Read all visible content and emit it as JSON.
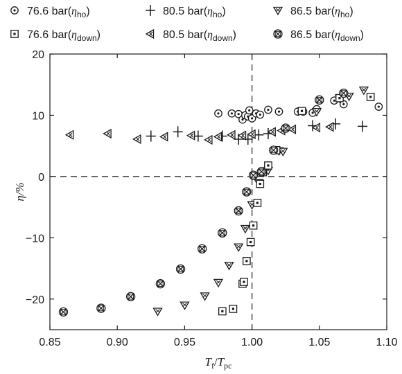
{
  "chart_data": {
    "type": "scatter",
    "xlim": [
      0.85,
      1.1
    ],
    "ylim": [
      -25,
      20
    ],
    "xticks": [
      0.85,
      0.9,
      0.95,
      1.0,
      1.05,
      1.1
    ],
    "xtick_labels": [
      "0.85",
      "0.90",
      "0.95",
      "1.00",
      "1.05",
      "1.10"
    ],
    "yticks": [
      -20,
      -10,
      0,
      10,
      20
    ],
    "ytick_labels": [
      "−20",
      "−10",
      "0",
      "10",
      "20"
    ],
    "xlabel": {
      "main_a": "T",
      "sub_a": "f",
      "sep": "/",
      "main_b": "T",
      "sub_b": "pc"
    },
    "ylabel": "η/%",
    "reference_lines": {
      "x": 1.0,
      "y": 0,
      "style": "dashed"
    },
    "grid": false,
    "legend_position": "top",
    "series": [
      {
        "legend": {
          "pre": "76.6 bar(",
          "sym": "η",
          "sub": "ho",
          "post": ")"
        },
        "marker": "circle-dot",
        "points": [
          [
            0.975,
            10.3
          ],
          [
            0.985,
            10.3
          ],
          [
            0.99,
            10.2
          ],
          [
            0.993,
            9.3
          ],
          [
            0.995,
            10.0
          ],
          [
            0.997,
            9.8
          ],
          [
            0.998,
            10.8
          ],
          [
            1.0,
            9.5
          ],
          [
            1.003,
            10.3
          ],
          [
            1.006,
            10.1
          ],
          [
            1.012,
            10.9
          ],
          [
            1.02,
            10.6
          ],
          [
            1.034,
            10.6
          ],
          [
            1.038,
            10.6
          ],
          [
            1.045,
            10.4
          ],
          [
            1.048,
            11.0
          ],
          [
            1.061,
            12.4
          ],
          [
            1.068,
            11.8
          ],
          [
            1.094,
            11.4
          ]
        ]
      },
      {
        "legend": {
          "pre": "80.5 bar(",
          "sym": "η",
          "sub": "ho",
          "post": ")"
        },
        "marker": "plus",
        "points": [
          [
            0.925,
            6.6
          ],
          [
            0.945,
            7.3
          ],
          [
            0.96,
            6.6
          ],
          [
            0.978,
            6.6
          ],
          [
            0.99,
            6.1
          ],
          [
            0.997,
            6.1
          ],
          [
            1.005,
            6.8
          ],
          [
            1.012,
            7.0
          ],
          [
            1.045,
            8.3
          ],
          [
            1.062,
            8.6
          ],
          [
            1.082,
            8.2
          ]
        ]
      },
      {
        "legend": {
          "pre": "86.5 bar(",
          "sym": "η",
          "sub": "ho",
          "post": ")"
        },
        "marker": "triangle-down-x",
        "points": [
          [
            0.93,
            -22.0
          ],
          [
            0.95,
            -21.0
          ],
          [
            0.965,
            -19.5
          ],
          [
            0.975,
            -17.3
          ],
          [
            0.983,
            -14.5
          ],
          [
            0.99,
            -11.5
          ],
          [
            0.995,
            -8.5
          ],
          [
            1.0,
            -4.6
          ],
          [
            1.005,
            -1.0
          ],
          [
            1.012,
            1.0
          ],
          [
            1.02,
            4.2
          ],
          [
            1.023,
            4.1
          ],
          [
            1.048,
            10.6
          ],
          [
            1.065,
            12.8
          ],
          [
            1.072,
            13.1
          ],
          [
            1.083,
            14.1
          ]
        ]
      },
      {
        "legend": {
          "pre": "76.6 bar(",
          "sym": "η",
          "sub": "down",
          "post": ")"
        },
        "marker": "square-dot",
        "points": [
          [
            0.978,
            -22.0
          ],
          [
            0.986,
            -21.6
          ],
          [
            0.993,
            -17.5
          ],
          [
            0.994,
            -17.2
          ],
          [
            0.996,
            -13.8
          ],
          [
            0.999,
            -10.7
          ],
          [
            1.001,
            -8.0
          ],
          [
            1.004,
            -4.3
          ],
          [
            1.006,
            -1.2
          ],
          [
            1.008,
            0.7
          ],
          [
            1.012,
            1.8
          ],
          [
            1.018,
            4.3
          ],
          [
            1.037,
            10.7
          ],
          [
            1.065,
            12.8
          ],
          [
            1.088,
            13.0
          ]
        ]
      },
      {
        "legend": {
          "pre": "80.5 bar(",
          "sym": "η",
          "sub": "down",
          "post": ")"
        },
        "marker": "triangle-left-x",
        "points": [
          [
            0.865,
            6.8
          ],
          [
            0.893,
            7.0
          ],
          [
            0.915,
            6.1
          ],
          [
            0.935,
            6.5
          ],
          [
            0.955,
            6.7
          ],
          [
            0.968,
            6.0
          ],
          [
            0.975,
            6.5
          ],
          [
            0.985,
            6.8
          ],
          [
            0.993,
            6.7
          ],
          [
            1.0,
            6.9
          ],
          [
            1.015,
            7.3
          ],
          [
            1.022,
            7.5
          ],
          [
            1.03,
            7.7
          ],
          [
            1.048,
            8.0
          ],
          [
            1.058,
            8.1
          ]
        ]
      },
      {
        "legend": {
          "pre": "86.5 bar(",
          "sym": "η",
          "sub": "down",
          "post": ")"
        },
        "marker": "circle-x",
        "points": [
          [
            0.86,
            -22.1
          ],
          [
            0.888,
            -21.5
          ],
          [
            0.91,
            -19.6
          ],
          [
            0.932,
            -17.5
          ],
          [
            0.947,
            -15.1
          ],
          [
            0.963,
            -11.8
          ],
          [
            0.978,
            -9.2
          ],
          [
            0.99,
            -5.6
          ],
          [
            0.996,
            -2.5
          ],
          [
            1.001,
            0.2
          ],
          [
            1.007,
            0.8
          ],
          [
            1.016,
            4.3
          ],
          [
            1.025,
            7.9
          ],
          [
            1.05,
            12.5
          ],
          [
            1.068,
            13.6
          ]
        ]
      }
    ]
  }
}
